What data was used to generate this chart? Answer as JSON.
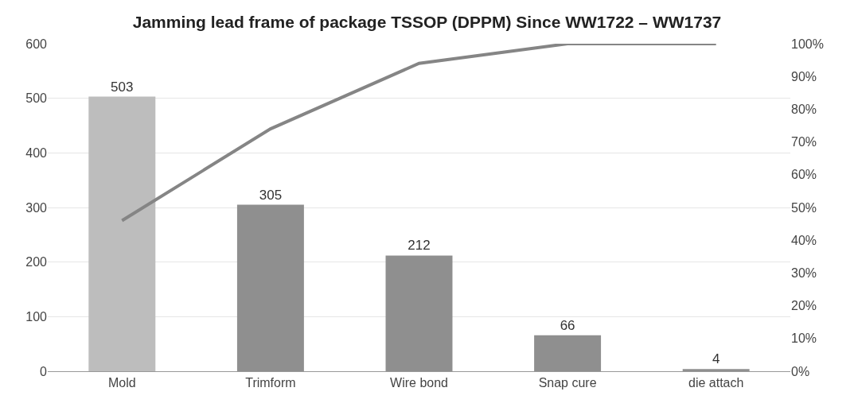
{
  "chart_data": {
    "type": "bar",
    "title": "Jamming lead frame of package TSSOP (DPPM) Since WW1722 – WW1737",
    "categories": [
      "Mold",
      "Trimform",
      "Wire bond",
      "Snap cure",
      "die attach"
    ],
    "series": [
      {
        "colors": [
          "#bdbdbd",
          "#8f8f8f",
          "#8f8f8f",
          "#8f8f8f",
          "#8f8f8f"
        ],
        "values": [
          503,
          305,
          212,
          66,
          4
        ],
        "value_labels": [
          "503",
          "305",
          "212",
          "66",
          "4"
        ]
      },
      {
        "type": "line",
        "axis": "y2",
        "color": "#858585",
        "values": [
          46,
          74,
          94,
          100,
          100
        ]
      }
    ],
    "ylim": [
      0,
      600
    ],
    "yticks": [
      0,
      100,
      200,
      300,
      400,
      500,
      600
    ],
    "y2lim": [
      0,
      100
    ],
    "y2ticks": [
      {
        "value": 0,
        "label": "0%"
      },
      {
        "value": 10,
        "label": "10%"
      },
      {
        "value": 20,
        "label": "20%"
      },
      {
        "value": 30,
        "label": "30%"
      },
      {
        "value": 40,
        "label": "40%"
      },
      {
        "value": 50,
        "label": "50%"
      },
      {
        "value": 60,
        "label": "60%"
      },
      {
        "value": 70,
        "label": "70%"
      },
      {
        "value": 80,
        "label": "80%"
      },
      {
        "value": 90,
        "label": "90%"
      },
      {
        "value": 100,
        "label": "100%"
      }
    ],
    "grid": "y",
    "legend": false,
    "marker": "none",
    "line_style": "solid"
  }
}
